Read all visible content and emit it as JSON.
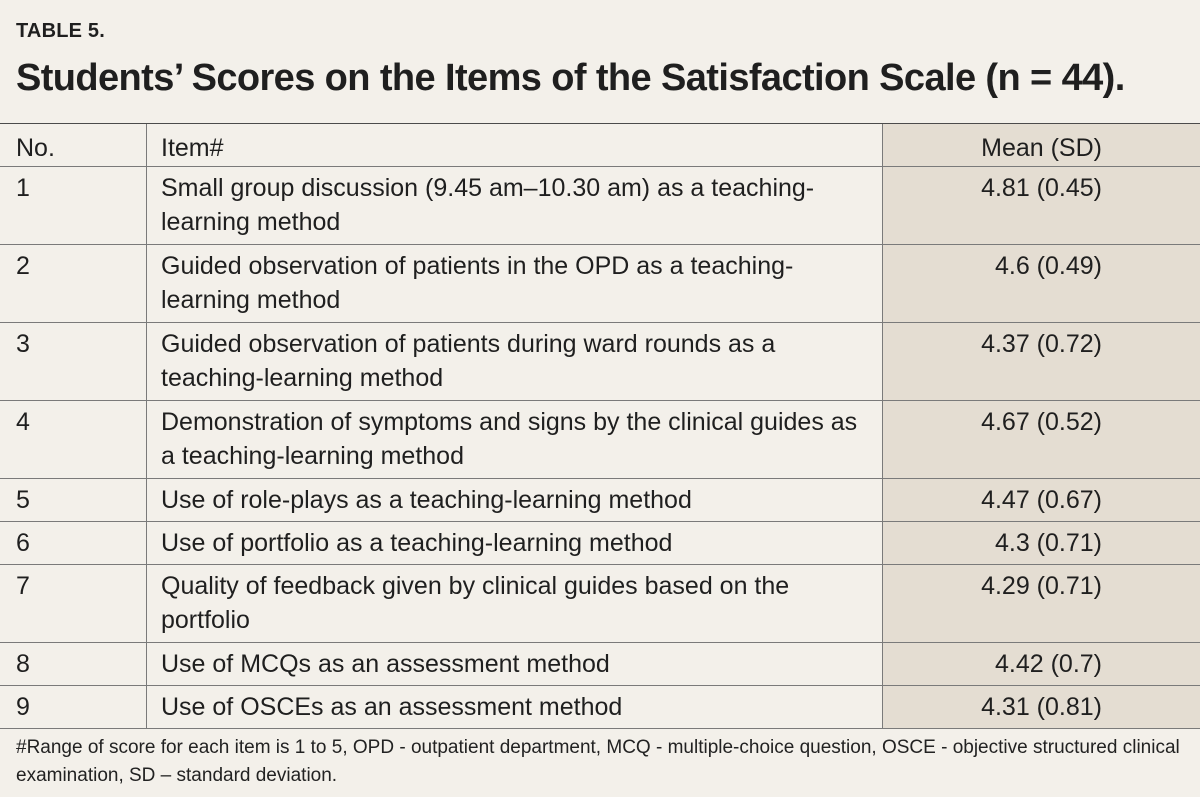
{
  "table_label": "TABLE 5.",
  "title": "Students’ Scores on the Items of the Satisfaction Scale (n = 44).",
  "columns": {
    "no": "No.",
    "item": "Item#",
    "mean": "Mean (SD)"
  },
  "rows": [
    {
      "no": "1",
      "item": "Small group discussion (9.45 am–10.30 am) as a teaching-learning method",
      "mean": "4.81 (0.45)"
    },
    {
      "no": "2",
      "item": "Guided observation of patients in the OPD as a teaching-learning method",
      "mean": "4.6 (0.49)"
    },
    {
      "no": "3",
      "item": "Guided observation of patients during ward rounds as a teaching-learning method",
      "mean": "4.37 (0.72)"
    },
    {
      "no": "4",
      "item": "Demonstration of symptoms and signs by the clinical guides as a teaching-learning method",
      "mean": "4.67 (0.52)"
    },
    {
      "no": "5",
      "item": "Use of role-plays as a teaching-learning method",
      "mean": "4.47 (0.67)"
    },
    {
      "no": "6",
      "item": "Use of portfolio as a teaching-learning method",
      "mean": "4.3 (0.71)"
    },
    {
      "no": "7",
      "item": "Quality of feedback given by clinical guides based on the portfolio",
      "mean": "4.29 (0.71)"
    },
    {
      "no": "8",
      "item": "Use of MCQs as an assessment method",
      "mean": "4.42 (0.7)"
    },
    {
      "no": "9",
      "item": "Use of OSCEs as an assessment method",
      "mean": "4.31 (0.81)"
    }
  ],
  "footnote": "#Range of score for each item is 1 to 5, OPD - outpatient department, MCQ - multiple-choice question, OSCE - objective structured clinical examination, SD – standard deviation."
}
